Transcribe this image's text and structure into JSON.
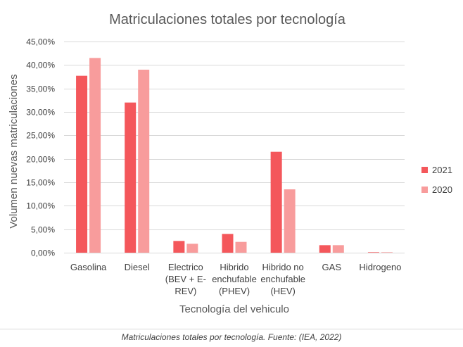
{
  "chart_data": {
    "type": "bar",
    "title": "Matriculaciones totales por tecnología",
    "xlabel": "Tecnología del vehiculo",
    "ylabel": "Volumen nuevas matriculaciones",
    "categories": [
      [
        "Gasolina"
      ],
      [
        "Diesel"
      ],
      [
        "Electrico",
        "(BEV + E-",
        "REV)"
      ],
      [
        "Hibrido",
        "enchufable",
        "(PHEV)"
      ],
      [
        "Hibrido no",
        "enchufable",
        "(HEV)"
      ],
      [
        "GAS"
      ],
      [
        "Hidrogeno"
      ]
    ],
    "series": [
      {
        "name": "2021",
        "color": "#f4575b",
        "values": [
          37.7,
          32.0,
          2.5,
          4.0,
          21.5,
          1.6,
          0.1
        ]
      },
      {
        "name": "2020",
        "color": "#f89c9c",
        "values": [
          41.5,
          39.0,
          1.9,
          2.3,
          13.5,
          1.6,
          0.1
        ]
      }
    ],
    "ylim": [
      0,
      45
    ],
    "yticks": [
      "0,00%",
      "5,00%",
      "10,00%",
      "15,00%",
      "20,00%",
      "25,00%",
      "30,00%",
      "35,00%",
      "40,00%",
      "45,00%"
    ],
    "grid": true,
    "legend_position": "right"
  },
  "caption": "Matriculaciones totales por tecnología. Fuente: (IEA, 2022)"
}
